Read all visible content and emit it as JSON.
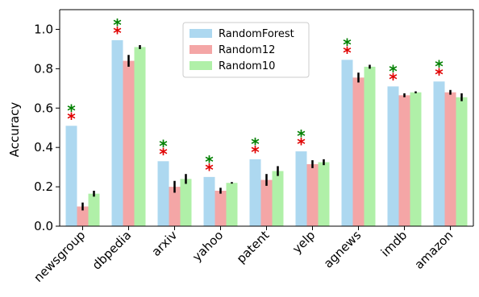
{
  "chart_data": {
    "type": "bar",
    "title": "",
    "xlabel": "",
    "ylabel": "Accuracy",
    "ylim": [
      0.0,
      1.1
    ],
    "yticks": [
      "0.0",
      "0.2",
      "0.4",
      "0.6",
      "0.8",
      "1.0"
    ],
    "grid": false,
    "legend_position": "top-center",
    "categories": [
      "newsgroup",
      "dbpedia",
      "arxiv",
      "yahoo",
      "patent",
      "yelp",
      "agnews",
      "imdb",
      "amazon"
    ],
    "series": [
      {
        "name": "RandomForest",
        "color": "#add8f0",
        "values": [
          0.51,
          0.945,
          0.33,
          0.25,
          0.34,
          0.38,
          0.845,
          0.71,
          0.735
        ],
        "errors": [
          0,
          0,
          0,
          0,
          0,
          0,
          0,
          0,
          0
        ]
      },
      {
        "name": "Random12",
        "color": "#f4a6a6",
        "values": [
          0.1,
          0.84,
          0.2,
          0.18,
          0.235,
          0.315,
          0.755,
          0.665,
          0.68
        ],
        "errors": [
          0.02,
          0.03,
          0.03,
          0.015,
          0.03,
          0.02,
          0.025,
          0.01,
          0.012
        ]
      },
      {
        "name": "Random10",
        "color": "#b0f0a8",
        "values": [
          0.165,
          0.91,
          0.24,
          0.22,
          0.28,
          0.325,
          0.81,
          0.68,
          0.655
        ],
        "errors": [
          0.015,
          0.01,
          0.025,
          0.004,
          0.025,
          0.015,
          0.01,
          0.005,
          0.02
        ]
      }
    ],
    "significance_markers": {
      "symbol": "*",
      "colors": [
        "#008000",
        "#e00000"
      ],
      "categories": [
        "newsgroup",
        "dbpedia",
        "arxiv",
        "yahoo",
        "patent",
        "yelp",
        "agnews",
        "imdb",
        "amazon"
      ]
    }
  }
}
